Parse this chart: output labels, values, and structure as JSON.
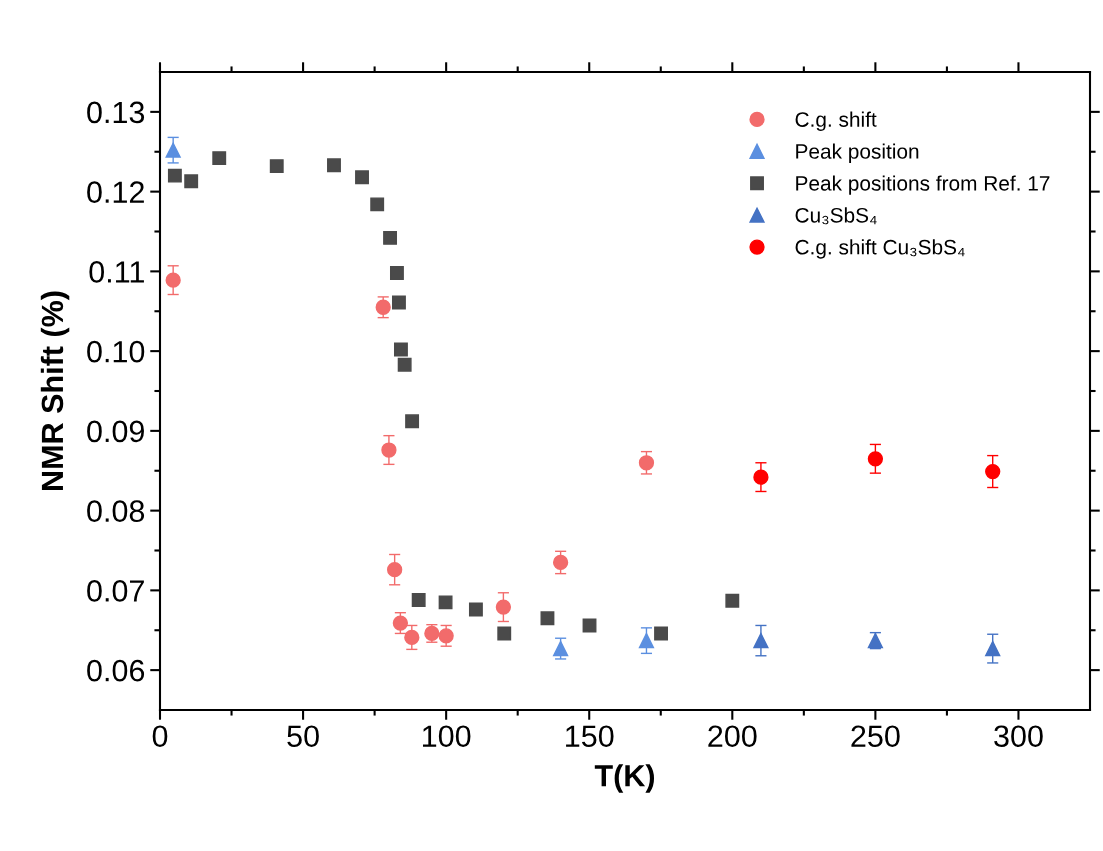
{
  "chart_data": {
    "type": "scatter",
    "xlabel": "T(K)",
    "ylabel": "NMR Shift (%)",
    "xlim": [
      0,
      325
    ],
    "ylim": [
      0.055,
      0.135
    ],
    "xticks": [
      0,
      {
        "value": 25,
        "label": null
      },
      50,
      {
        "value": 75,
        "label": null
      },
      100,
      {
        "value": 125,
        "label": null
      },
      150,
      {
        "value": 175,
        "label": null
      },
      200,
      {
        "value": 225,
        "label": null
      },
      250,
      {
        "value": 275,
        "label": null
      },
      300
    ],
    "yticks": [
      {
        "value": 0.06,
        "label": "0.06"
      },
      {
        "value": 0.065,
        "label": null
      },
      {
        "value": 0.07,
        "label": "0.07"
      },
      {
        "value": 0.075,
        "label": null
      },
      {
        "value": 0.08,
        "label": "0.08"
      },
      {
        "value": 0.085,
        "label": null
      },
      {
        "value": 0.09,
        "label": "0.09"
      },
      {
        "value": 0.095,
        "label": null
      },
      {
        "value": 0.1,
        "label": "0.10"
      },
      {
        "value": 0.105,
        "label": null
      },
      {
        "value": 0.11,
        "label": "0.11"
      },
      {
        "value": 0.115,
        "label": null
      },
      {
        "value": 0.12,
        "label": "0.12"
      },
      {
        "value": 0.125,
        "label": null
      },
      {
        "value": 0.13,
        "label": "0.13"
      }
    ],
    "grid": false,
    "legend": "top right",
    "series": [
      {
        "name": "C.g. shift",
        "color": "#f26b6b",
        "marker": "circle",
        "x": [
          4.6,
          78,
          80,
          82,
          84,
          88,
          95,
          100,
          120,
          140,
          170
        ],
        "values": [
          0.1089,
          0.1055,
          0.0876,
          0.0726,
          0.0659,
          0.0641,
          0.0646,
          0.0643,
          0.0679,
          0.0735,
          0.086
        ],
        "errors": [
          0.0018,
          0.0013,
          0.0018,
          0.0019,
          0.0013,
          0.0015,
          0.0011,
          0.0013,
          0.0018,
          0.0014,
          0.0014
        ]
      },
      {
        "name": "Peak position",
        "color": "#5b8fe0",
        "marker": "triangle",
        "x": [
          4.6,
          140,
          170
        ],
        "values": [
          0.1252,
          0.0627,
          0.0637
        ],
        "errors": [
          0.0016,
          0.0013,
          0.0016
        ]
      },
      {
        "name": "Peak positions from Ref. 17",
        "color": "#4a4a4a",
        "marker": "square",
        "x": [
          5.2,
          10.9,
          20.7,
          40.8,
          60.8,
          70.6,
          75.9,
          80.4,
          82.8,
          83.5,
          84.2,
          85.5,
          88.1,
          90.4,
          99.8,
          110.4,
          120.3,
          135.4,
          150.1,
          175.1,
          200
        ],
        "values": [
          0.122,
          0.1213,
          0.1242,
          0.1232,
          0.1233,
          0.1218,
          0.1184,
          0.1142,
          0.1098,
          0.1061,
          0.1002,
          0.0983,
          0.0912,
          0.0688,
          0.0685,
          0.0676,
          0.0646,
          0.0665,
          0.0656,
          0.0646,
          0.0687
        ]
      },
      {
        "name": "Cu₃SbS₄",
        "color": "#4472c4",
        "marker": "triangle",
        "x": [
          210,
          250,
          291
        ],
        "values": [
          0.0637,
          0.0637,
          0.0627
        ],
        "errors": [
          0.0019,
          0.001,
          0.0018
        ]
      },
      {
        "name": "C.g. shift Cu₃SbS₄",
        "color": "#ff0000",
        "marker": "circle",
        "x": [
          210,
          250,
          291
        ],
        "values": [
          0.0842,
          0.0865,
          0.0849
        ],
        "errors": [
          0.0018,
          0.0018,
          0.002
        ]
      }
    ]
  }
}
